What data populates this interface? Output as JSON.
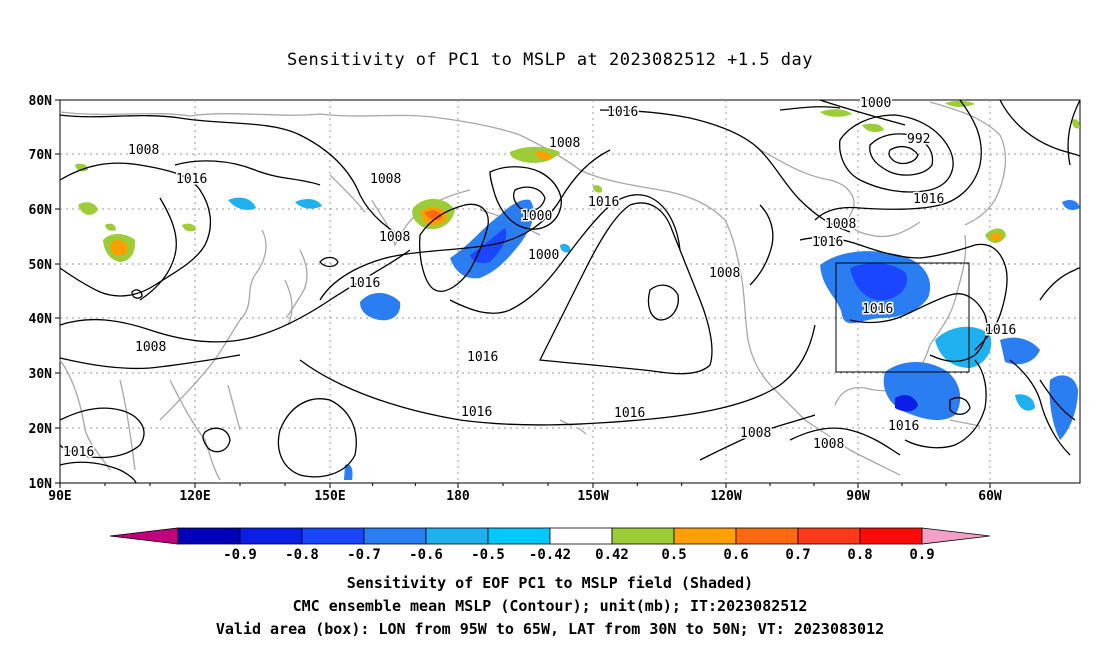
{
  "title": "Sensitivity of PC1 to MSLP at 2023082512 +1.5 day",
  "map": {
    "lat_labels": [
      "80N",
      "70N",
      "60N",
      "50N",
      "40N",
      "30N",
      "20N",
      "10N"
    ],
    "lon_labels": [
      "90E",
      "120E",
      "150E",
      "180",
      "150W",
      "120W",
      "90W",
      "60W"
    ],
    "grid": "dotted",
    "box": {
      "lon": [
        "95W",
        "65W"
      ],
      "lat": [
        "30N",
        "50N"
      ]
    },
    "contour_labels": [
      "1016",
      "1000",
      "992",
      "1008",
      "1016",
      "1008",
      "1008",
      "1016",
      "1000",
      "1016",
      "1008",
      "1008",
      "1016",
      "1000",
      "1008",
      "1016",
      "1016",
      "1016",
      "1016",
      "1016",
      "1008",
      "1016",
      "1016",
      "1008",
      "1016",
      "1008",
      "1008",
      "1008"
    ]
  },
  "colorbar": {
    "labels": [
      "-0.9",
      "-0.8",
      "-0.7",
      "-0.6",
      "-0.5",
      "-0.42",
      "0.42",
      "0.5",
      "0.6",
      "0.7",
      "0.8",
      "0.9"
    ],
    "colors": [
      "#c0007a",
      "#0000b8",
      "#0a1ee6",
      "#1b46ff",
      "#2b7df2",
      "#1fb0f0",
      "#00c8f8",
      "#ffffff",
      "#9ccc36",
      "#ffa000",
      "#ff6a10",
      "#ff3a1a",
      "#ff0a0a",
      "#f2a0c8"
    ]
  },
  "captions": {
    "line1": "Sensitivity of EOF PC1 to MSLP field (Shaded)",
    "line2": "CMC ensemble mean MSLP (Contour); unit(mb); IT:2023082512",
    "line3": "Valid area (box): LON from 95W to 65W, LAT from 30N to 50N; VT: 2023083012"
  }
}
